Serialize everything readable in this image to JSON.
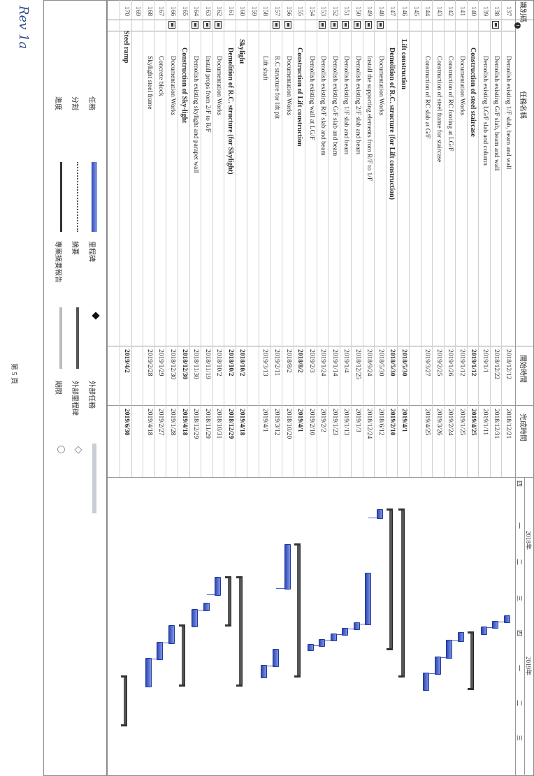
{
  "columns": {
    "id": "識別碼",
    "name": "任務名稱",
    "start": "開始時間",
    "finish": "完成時間"
  },
  "timeline": {
    "year1": "2018年",
    "year2": "2019年",
    "quarters": [
      "四",
      "一",
      "二",
      "三",
      "四",
      "一",
      "二",
      "三"
    ]
  },
  "tasks": [
    {
      "id": "137",
      "name": "Demolish existing 1/F slab, beam and wall",
      "start": "2018/12/12",
      "finish": "2018/12/21",
      "level": "l3",
      "icon": false
    },
    {
      "id": "138",
      "name": "Demolish existing G/F slab, beam and wall",
      "start": "2018/12/22",
      "finish": "2018/12/31",
      "level": "l3",
      "icon": true
    },
    {
      "id": "139",
      "name": "Demolish existing LG/F slab and column",
      "start": "2019/1/1",
      "finish": "2019/1/11",
      "level": "l3",
      "icon": false
    },
    {
      "id": "140",
      "name": "Construction of steel staircase",
      "start": "2019/1/12",
      "finish": "2019/4/25",
      "level": "l2",
      "icon": false
    },
    {
      "id": "141",
      "name": "Documentation Works",
      "start": "2019/1/12",
      "finish": "2019/1/25",
      "level": "l3",
      "icon": false
    },
    {
      "id": "142",
      "name": "Construction of RC footing at LG/F",
      "start": "2019/1/26",
      "finish": "2019/2/24",
      "level": "l3",
      "icon": false
    },
    {
      "id": "143",
      "name": "Construction of steel frame for staircase",
      "start": "2019/2/25",
      "finish": "2019/3/26",
      "level": "l3",
      "icon": false
    },
    {
      "id": "144",
      "name": "Construction of RC slab at G/F",
      "start": "2019/3/27",
      "finish": "2019/4/25",
      "level": "l3",
      "icon": false
    },
    {
      "id": "145",
      "name": "",
      "start": "",
      "finish": "",
      "level": "l3",
      "icon": false
    },
    {
      "id": "146",
      "name": "Lift construction",
      "start": "2018/5/30",
      "finish": "2019/4/1",
      "level": "l1",
      "icon": false
    },
    {
      "id": "147",
      "name": "Demolition of R.C. structure (for Lift construction)",
      "start": "2018/5/30",
      "finish": "2019/2/10",
      "level": "l2",
      "icon": false
    },
    {
      "id": "148",
      "name": "Documentation Works",
      "start": "2018/5/30",
      "finish": "2018/6/12",
      "level": "l3",
      "icon": true
    },
    {
      "id": "149",
      "name": "Install the supporting elements from R/F to 1/F",
      "start": "2018/9/24",
      "finish": "2018/12/24",
      "level": "l3",
      "icon": true
    },
    {
      "id": "150",
      "name": "Demolish existing 2/F slab and beam",
      "start": "2018/12/25",
      "finish": "2019/1/3",
      "level": "l3",
      "icon": true
    },
    {
      "id": "151",
      "name": "Demolish existing 1/F slab and beam",
      "start": "2019/1/4",
      "finish": "2019/1/13",
      "level": "l3",
      "icon": true
    },
    {
      "id": "152",
      "name": "Demolish existing G/F slab and beam",
      "start": "2019/1/14",
      "finish": "2019/1/23",
      "level": "l3",
      "icon": true
    },
    {
      "id": "153",
      "name": "Demolish existing R/F slab and beam",
      "start": "2019/1/24",
      "finish": "2019/2/2",
      "level": "l3",
      "icon": true
    },
    {
      "id": "154",
      "name": "Demolish existing wall at LG/F",
      "start": "2019/2/3",
      "finish": "2019/2/10",
      "level": "l3",
      "icon": false
    },
    {
      "id": "155",
      "name": "Construction of Lift construction",
      "start": "2018/8/2",
      "finish": "2019/4/1",
      "level": "l2",
      "icon": false
    },
    {
      "id": "156",
      "name": "Documentation Works",
      "start": "2018/8/2",
      "finish": "2018/10/20",
      "level": "l3",
      "icon": true
    },
    {
      "id": "157",
      "name": "R.C structure for lift pit",
      "start": "2019/2/11",
      "finish": "2019/3/12",
      "level": "l3",
      "icon": true
    },
    {
      "id": "158",
      "name": "Lift shaft",
      "start": "2019/3/13",
      "finish": "2019/4/1",
      "level": "l3",
      "icon": false
    },
    {
      "id": "159",
      "name": "",
      "start": "",
      "finish": "",
      "level": "l3",
      "icon": false
    },
    {
      "id": "160",
      "name": "Skylight",
      "start": "2018/10/2",
      "finish": "2019/4/18",
      "level": "l1",
      "icon": false
    },
    {
      "id": "161",
      "name": "Demolition of R.C. structure (for Skylight)",
      "start": "2018/10/2",
      "finish": "2018/12/29",
      "level": "l2",
      "icon": false
    },
    {
      "id": "162",
      "name": "Documentation Works",
      "start": "2018/10/2",
      "finish": "2018/10/31",
      "level": "l3",
      "icon": true
    },
    {
      "id": "163",
      "name": "Install props from 2/F to R/F",
      "start": "2018/11/19",
      "finish": "2018/11/29",
      "level": "l3",
      "icon": true
    },
    {
      "id": "164",
      "name": "Demolish existing skylight and parapet wall",
      "start": "2018/11/30",
      "finish": "2018/12/29",
      "level": "l3",
      "icon": true
    },
    {
      "id": "165",
      "name": "Construction of Sky-light",
      "start": "2018/12/30",
      "finish": "2019/4/18",
      "level": "l2",
      "icon": false
    },
    {
      "id": "166",
      "name": "Documentation Works",
      "start": "2018/12/30",
      "finish": "2019/1/28",
      "level": "l3",
      "icon": true
    },
    {
      "id": "167",
      "name": "Concrete block",
      "start": "2019/1/29",
      "finish": "2019/2/27",
      "level": "l3",
      "icon": false
    },
    {
      "id": "168",
      "name": "Skylight steel frame",
      "start": "2019/2/28",
      "finish": "2019/4/18",
      "level": "l3",
      "icon": false
    },
    {
      "id": "169",
      "name": "",
      "start": "",
      "finish": "",
      "level": "l3",
      "icon": false
    },
    {
      "id": "170",
      "name": "Steel ramp",
      "start": "2019/4/2",
      "finish": "2019/6/30",
      "level": "top",
      "icon": false
    }
  ],
  "legend": {
    "task": "任務",
    "split": "分割",
    "progress": "進度",
    "milestone": "里程碑",
    "summary": "摘要",
    "project_summary": "專案摘要報告",
    "external_task": "外部任務",
    "external_milestone": "外部里程碑",
    "deadline": "期限"
  },
  "footer": {
    "page": "第 5 頁"
  }
}
